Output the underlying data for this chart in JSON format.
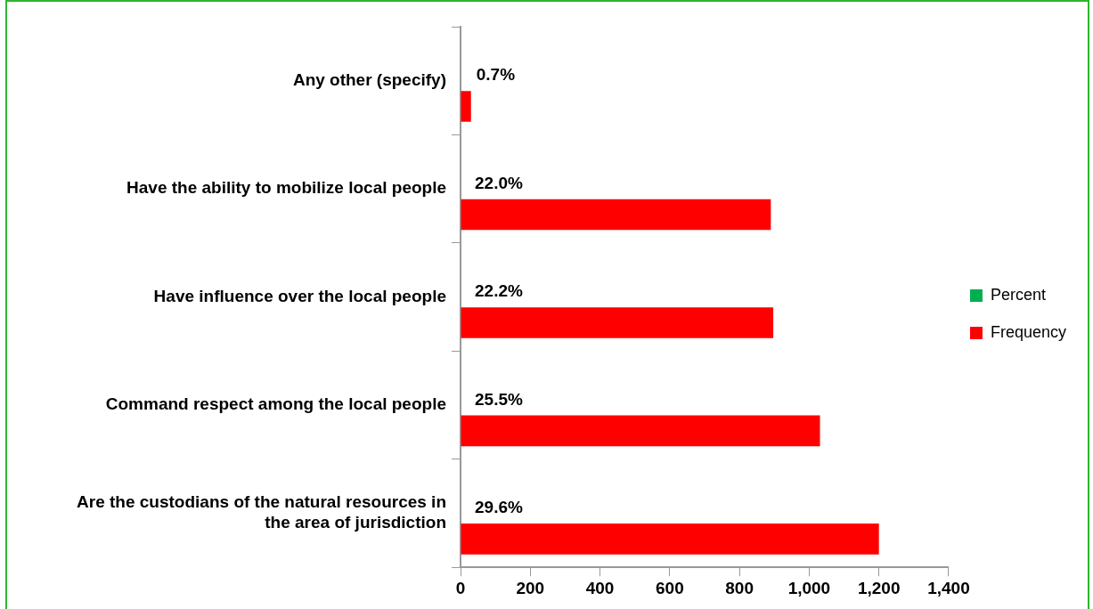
{
  "chart_data": {
    "type": "bar",
    "orientation": "horizontal",
    "categories": [
      "Any other (specify)",
      "Have the ability to mobilize local people",
      "Have influence over the local people",
      "Command respect among the local people",
      "Are the custodians of the natural resources in the area of jurisdiction"
    ],
    "series": [
      {
        "name": "Percent",
        "color": "#00b050",
        "values": [
          null,
          null,
          null,
          null,
          null
        ]
      },
      {
        "name": "Frequency",
        "color": "#ff0000",
        "values": [
          30,
          890,
          897,
          1031,
          1200
        ]
      }
    ],
    "annotations": [
      {
        "text": "0.7%",
        "x": 30,
        "y": "Any other (specify)"
      },
      {
        "text": "22.0%",
        "y": "Have the ability to mobilize local people"
      },
      {
        "text": "22.2%",
        "y": "Have influence over the local people"
      },
      {
        "text": "25.5%",
        "y": "Command respect among the local people"
      },
      {
        "text": "29.6%",
        "y": "Are the custodians of the natural resources in the area of jurisdiction"
      }
    ],
    "xlim": [
      0,
      1400
    ],
    "xticks": [
      {
        "value": 0,
        "label": "0"
      },
      {
        "value": 200,
        "label": "200"
      },
      {
        "value": 400,
        "label": "400"
      },
      {
        "value": 600,
        "label": "600"
      },
      {
        "value": 800,
        "label": "800"
      },
      {
        "value": 1000,
        "label": "1,000"
      },
      {
        "value": 1200,
        "label": "1,200"
      },
      {
        "value": 1400,
        "label": "1,400"
      }
    ],
    "grid": false,
    "legend": "right"
  }
}
